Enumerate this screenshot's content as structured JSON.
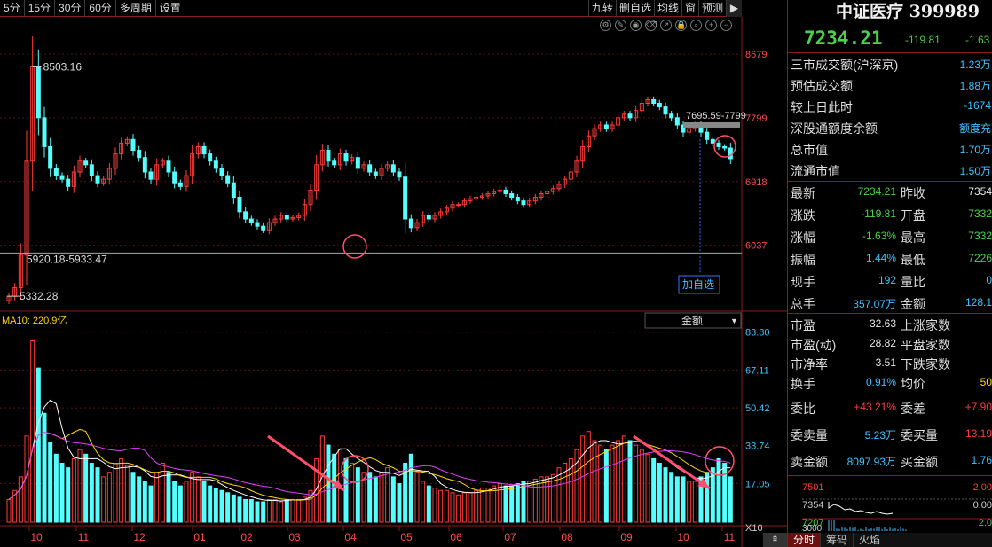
{
  "toolbar": {
    "periods": [
      "5分",
      "15分",
      "30分",
      "60分",
      "多周期",
      "设置"
    ],
    "tools": [
      "九转",
      "删自选",
      "均线",
      "窗",
      "预测"
    ]
  },
  "chart_data": {
    "type": "candlestick+volume",
    "price_axis": {
      "ticks": [
        "8679",
        "7799",
        "6918",
        "6037"
      ]
    },
    "volume_axis": {
      "ticks": [
        "83.80",
        "67.11",
        "50.42",
        "33.74",
        "17.05"
      ],
      "unit": "X10"
    },
    "months": [
      "10",
      "11",
      "12",
      "01",
      "02",
      "03",
      "04",
      "05",
      "06",
      "07",
      "08",
      "09",
      "10",
      "11"
    ],
    "annotations": {
      "high": "8503.16",
      "low": "5332.28",
      "range_label": "5920.18-5933.47",
      "band_label": "7695.59-7799",
      "add_watchlist": "加自选"
    },
    "volume_legend": "MA10: 220.9亿",
    "volume_selector": "金额",
    "closes": [
      5332,
      5450,
      5900,
      7200,
      8503,
      7800,
      7400,
      7100,
      7000,
      6950,
      6850,
      7050,
      7200,
      7150,
      7000,
      6900,
      6950,
      7100,
      7300,
      7450,
      7500,
      7350,
      7250,
      7050,
      6950,
      7150,
      7200,
      7050,
      6900,
      6850,
      7000,
      7300,
      7400,
      7300,
      7200,
      7100,
      7000,
      6900,
      6700,
      6500,
      6400,
      6350,
      6300,
      6250,
      6350,
      6400,
      6450,
      6400,
      6420,
      6450,
      6600,
      6800,
      7150,
      7350,
      7200,
      7150,
      7300,
      7200,
      7250,
      7100,
      7150,
      7050,
      7000,
      7100,
      7150,
      7050,
      6980,
      6400,
      6280,
      6350,
      6450,
      6400,
      6450,
      6500,
      6550,
      6600,
      6600,
      6650,
      6680,
      6700,
      6720,
      6750,
      6780,
      6800,
      6750,
      6700,
      6650,
      6600,
      6650,
      6700,
      6750,
      6780,
      6820,
      6880,
      6950,
      7050,
      7200,
      7400,
      7550,
      7650,
      7700,
      7650,
      7700,
      7800,
      7850,
      7800,
      7900,
      8000,
      8050,
      8000,
      7950,
      7850,
      7800,
      7700,
      7600,
      7650,
      7700,
      7600,
      7500,
      7450,
      7400,
      7380,
      7234
    ],
    "volumes": [
      10,
      14,
      20,
      38,
      80,
      68,
      48,
      35,
      30,
      26,
      24,
      28,
      32,
      30,
      26,
      24,
      20,
      22,
      26,
      28,
      25,
      22,
      20,
      18,
      16,
      22,
      26,
      22,
      18,
      16,
      18,
      22,
      20,
      18,
      16,
      15,
      14,
      13,
      12,
      11,
      10,
      10,
      9,
      9,
      10,
      10,
      9,
      10,
      10,
      10,
      11,
      14,
      28,
      38,
      34,
      30,
      32,
      28,
      26,
      24,
      22,
      22,
      20,
      22,
      24,
      20,
      17,
      26,
      30,
      22,
      18,
      16,
      15,
      14,
      14,
      13,
      12,
      13,
      13,
      14,
      15,
      15,
      16,
      17,
      16,
      16,
      17,
      18,
      18,
      19,
      20,
      20,
      21,
      24,
      26,
      28,
      32,
      38,
      40,
      36,
      34,
      32,
      34,
      36,
      38,
      36,
      34,
      32,
      30,
      28,
      26,
      24,
      22,
      20,
      20,
      18,
      18,
      20,
      22,
      24,
      28,
      26,
      20
    ]
  },
  "panel": {
    "title": "中证医疗 399989",
    "price": "7234.21",
    "change": "-119.81",
    "change_pct": "-1.63",
    "rows1": [
      {
        "label": "三市成交额(沪深京)",
        "value": "1.23万"
      },
      {
        "label": "预估成交额",
        "value": "1.88万"
      },
      {
        "label": "较上日此时",
        "value": "-1674"
      },
      {
        "label": "深股通额度余额",
        "value": "额度充"
      },
      {
        "label": "总市值",
        "value": "1.70万"
      },
      {
        "label": "流通市值",
        "value": "1.50万"
      }
    ],
    "rows2": [
      {
        "l1": "最新",
        "v1": "7234.21",
        "c1": "green",
        "l2": "昨收",
        "v2": "7354",
        "c2": "white"
      },
      {
        "l1": "涨跌",
        "v1": "-119.81",
        "c1": "green",
        "l2": "开盘",
        "v2": "7332",
        "c2": "green"
      },
      {
        "l1": "涨幅",
        "v1": "-1.63%",
        "c1": "green",
        "l2": "最高",
        "v2": "7332",
        "c2": "green"
      },
      {
        "l1": "振幅",
        "v1": "1.44%",
        "c1": "cyan",
        "l2": "最低",
        "v2": "7226",
        "c2": "green"
      },
      {
        "l1": "现手",
        "v1": "192",
        "c1": "cyan",
        "l2": "量比",
        "v2": "0",
        "c2": "cyan"
      },
      {
        "l1": "总手",
        "v1": "357.07万",
        "c1": "cyan",
        "l2": "金额",
        "v2": "128.1",
        "c2": "cyan"
      }
    ],
    "rows3": [
      {
        "l1": "市盈",
        "v1": "32.63",
        "c1": "white",
        "l2": "上涨家数",
        "v2": "",
        "c2": "red"
      },
      {
        "l1": "市盈(动)",
        "v1": "28.82",
        "c1": "white",
        "l2": "平盘家数",
        "v2": "",
        "c2": "white"
      },
      {
        "l1": "市净率",
        "v1": "3.51",
        "c1": "white",
        "l2": "下跌家数",
        "v2": "",
        "c2": "green"
      },
      {
        "l1": "换手",
        "v1": "0.91%",
        "c1": "cyan",
        "l2": "均价",
        "v2": "50",
        "c2": "yellow"
      }
    ],
    "rows4": [
      {
        "l1": "委比",
        "v1": "+43.21%",
        "c1": "red",
        "l2": "委差",
        "v2": "+7.90",
        "c2": "red"
      },
      {
        "l1": "委卖量",
        "v1": "5.23万",
        "c1": "cyan",
        "l2": "委买量",
        "v2": "13.19",
        "c2": "red"
      },
      {
        "l1": "卖金额",
        "v1": "8097.93万",
        "c1": "cyan",
        "l2": "买金额",
        "v2": "1.76",
        "c2": "cyan"
      }
    ],
    "mini": {
      "price_labels": [
        "7501",
        "7354",
        "7207"
      ],
      "pct_labels": [
        "2.00",
        "0.00",
        "2.0"
      ],
      "vol_label": "3000"
    },
    "tabs": [
      "分时",
      "筹码",
      "火焰"
    ]
  }
}
